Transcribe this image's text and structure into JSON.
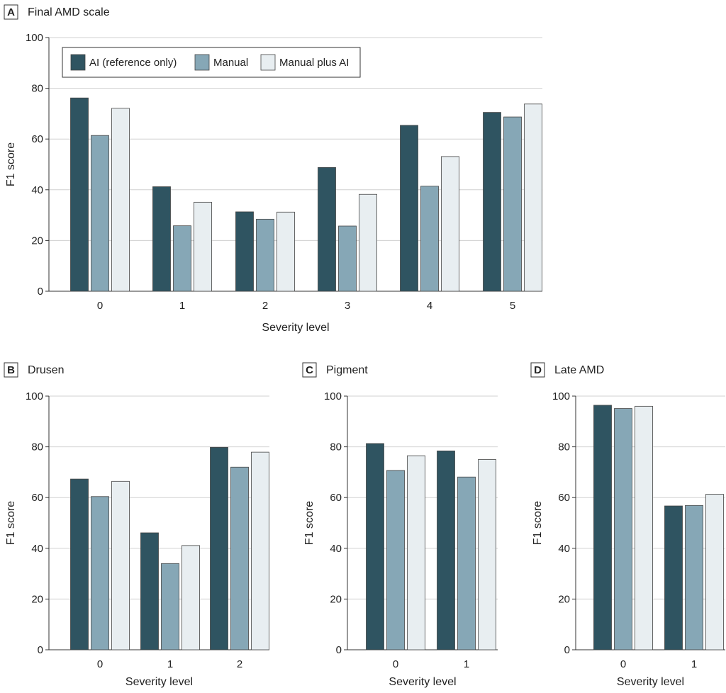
{
  "figure": {
    "legend": [
      {
        "name": "AI (reference only)",
        "color": "#2f5461"
      },
      {
        "name": "Manual",
        "color": "#86a7b6"
      },
      {
        "name": "Manual plus AI",
        "color": "#e8eef1"
      }
    ]
  },
  "chart_data": [
    {
      "panel": "A",
      "type": "bar",
      "title": "Final AMD scale",
      "xlabel": "Severity level",
      "ylabel": "F1 score",
      "ylim": [
        0,
        100
      ],
      "yticks": [
        "0",
        "20",
        "40",
        "60",
        "80",
        "100"
      ],
      "grid": true,
      "legend_position": "top-left",
      "categories": [
        "0",
        "1",
        "2",
        "3",
        "4",
        "5"
      ],
      "series": [
        {
          "name": "AI (reference only)",
          "values": [
            76.2,
            41.2,
            31.3,
            48.8,
            65.4,
            70.5
          ]
        },
        {
          "name": "Manual",
          "values": [
            61.4,
            25.8,
            28.4,
            25.7,
            41.4,
            68.7
          ]
        },
        {
          "name": "Manual plus AI",
          "values": [
            72.1,
            35.1,
            31.2,
            38.2,
            53.1,
            73.8
          ]
        }
      ]
    },
    {
      "panel": "B",
      "type": "bar",
      "title": "Drusen",
      "xlabel": "Severity level",
      "ylabel": "F1 score",
      "ylim": [
        0,
        100
      ],
      "yticks": [
        "0",
        "20",
        "40",
        "60",
        "80",
        "100"
      ],
      "grid": true,
      "categories": [
        "0",
        "1",
        "2"
      ],
      "series": [
        {
          "name": "AI (reference only)",
          "values": [
            67.3,
            46.1,
            79.8
          ]
        },
        {
          "name": "Manual",
          "values": [
            60.4,
            34.0,
            72.0
          ]
        },
        {
          "name": "Manual plus AI",
          "values": [
            66.4,
            41.1,
            77.9
          ]
        }
      ]
    },
    {
      "panel": "C",
      "type": "bar",
      "title": "Pigment",
      "xlabel": "Severity level",
      "ylabel": "F1 score",
      "ylim": [
        0,
        100
      ],
      "yticks": [
        "0",
        "20",
        "40",
        "60",
        "80",
        "100"
      ],
      "grid": true,
      "categories": [
        "0",
        "1"
      ],
      "series": [
        {
          "name": "AI (reference only)",
          "values": [
            81.3,
            78.4
          ]
        },
        {
          "name": "Manual",
          "values": [
            70.7,
            68.1
          ]
        },
        {
          "name": "Manual plus AI",
          "values": [
            76.5,
            75.0
          ]
        }
      ]
    },
    {
      "panel": "D",
      "type": "bar",
      "title": "Late AMD",
      "xlabel": "Severity level",
      "ylabel": "F1 score",
      "ylim": [
        0,
        100
      ],
      "yticks": [
        "0",
        "20",
        "40",
        "60",
        "80",
        "100"
      ],
      "grid": true,
      "categories": [
        "0",
        "1"
      ],
      "series": [
        {
          "name": "AI (reference only)",
          "values": [
            96.4,
            56.7
          ]
        },
        {
          "name": "Manual",
          "values": [
            95.1,
            56.9
          ]
        },
        {
          "name": "Manual plus AI",
          "values": [
            96.0,
            61.3
          ]
        }
      ]
    }
  ]
}
